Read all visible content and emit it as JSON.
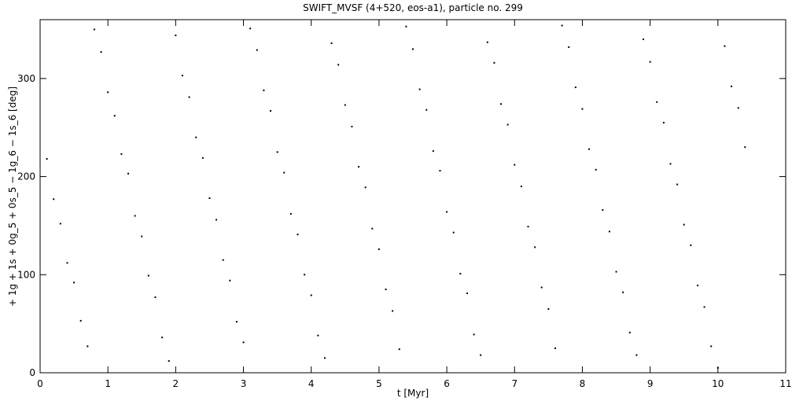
{
  "chart_data": {
    "type": "scatter",
    "title": "SWIFT_MVSF (4+520, eos-a1), particle no. 299",
    "x_label": "t [Myr]",
    "y_label": "+ 1g + 1s + 0g_5 + 0s_5 − 1g_6 − 1s_6 [deg]",
    "color": "#000000",
    "xlim": [
      0,
      11
    ],
    "xticks": [
      0,
      1,
      2,
      3,
      4,
      5,
      6,
      7,
      8,
      9,
      10,
      11
    ],
    "ylim": [
      0,
      360
    ],
    "yticks": [
      0,
      100,
      200,
      300
    ],
    "x": [
      0.1,
      0.2,
      0.3,
      0.4,
      0.5,
      0.6,
      0.7,
      0.8,
      0.9,
      1.0,
      1.1,
      1.2,
      1.3,
      1.4,
      1.5,
      1.6,
      1.7,
      1.8,
      1.9,
      2.0,
      2.1,
      2.2,
      2.3,
      2.4,
      2.5,
      2.6,
      2.7,
      2.8,
      2.9,
      3.0,
      3.1,
      3.2,
      3.3,
      3.4,
      3.5,
      3.6,
      3.7,
      3.8,
      3.9,
      4.0,
      4.1,
      4.2,
      4.3,
      4.4,
      4.5,
      4.6,
      4.7,
      4.8,
      4.9,
      5.0,
      5.1,
      5.2,
      5.3,
      5.4,
      5.5,
      5.6,
      5.7,
      5.8,
      5.9,
      6.0,
      6.1,
      6.2,
      6.3,
      6.4,
      6.5,
      6.6,
      6.7,
      6.8,
      6.9,
      7.0,
      7.1,
      7.2,
      7.3,
      7.4,
      7.5,
      7.6,
      7.7,
      7.8,
      7.9,
      8.0,
      8.1,
      8.2,
      8.3,
      8.4,
      8.5,
      8.6,
      8.7,
      8.8,
      8.9,
      9.0,
      9.1,
      9.2,
      9.3,
      9.4,
      9.5,
      9.6,
      9.7,
      9.8,
      9.9,
      10.0,
      10.1,
      10.2,
      10.3,
      10.4
    ],
    "y": [
      218,
      177,
      152,
      112,
      92,
      53,
      27,
      350,
      327,
      286,
      262,
      223,
      203,
      160,
      139,
      99,
      77,
      36,
      12,
      344,
      303,
      281,
      240,
      219,
      178,
      156,
      115,
      94,
      52,
      31,
      351,
      329,
      288,
      267,
      225,
      204,
      162,
      141,
      100,
      79,
      38,
      15,
      336,
      314,
      273,
      251,
      210,
      189,
      147,
      126,
      85,
      63,
      24,
      353,
      330,
      289,
      268,
      226,
      206,
      164,
      143,
      101,
      81,
      39,
      18,
      337,
      316,
      274,
      253,
      212,
      190,
      149,
      128,
      87,
      65,
      25,
      354,
      332,
      291,
      269,
      228,
      207,
      166,
      144,
      103,
      82,
      41,
      18,
      340,
      317,
      276,
      255,
      213,
      192,
      151,
      130,
      89,
      67,
      27,
      5,
      333,
      292,
      270,
      230
    ]
  }
}
